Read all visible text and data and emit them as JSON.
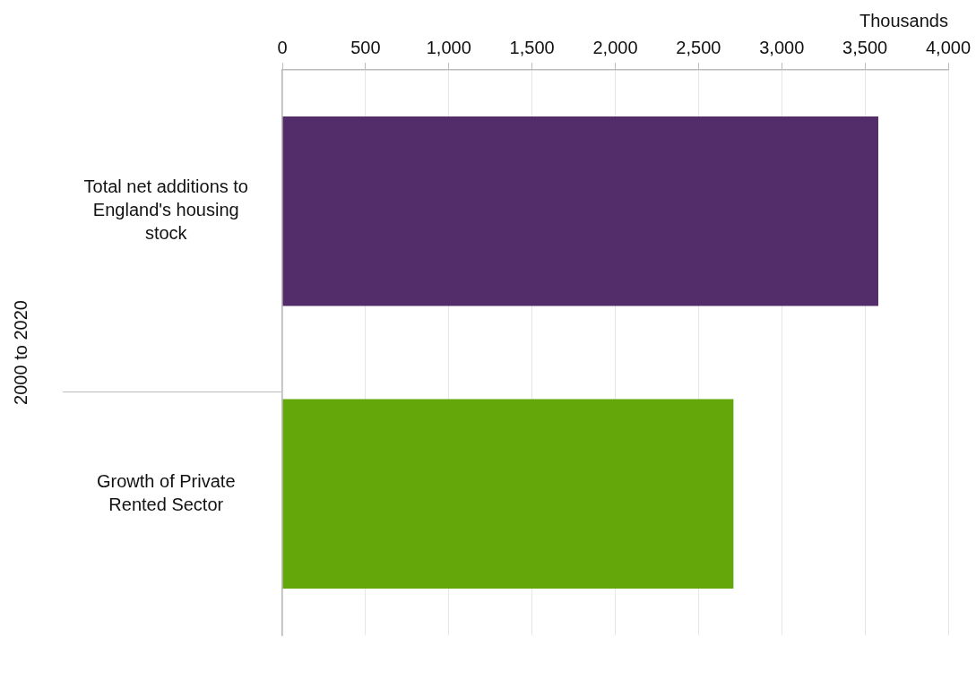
{
  "chart_data": {
    "type": "bar",
    "orientation": "horizontal",
    "xlabel": "Thousands",
    "ylabel": "2000 to 2020",
    "categories": [
      "Total net additions to England's housing stock",
      "Growth of Private Rented Sector"
    ],
    "series": [
      {
        "values": [
          3580,
          2710
        ],
        "colors": [
          "#522d6a",
          "#63a70b"
        ]
      }
    ],
    "xlim": [
      0,
      4000
    ],
    "xticks": [
      0,
      500,
      {
        "value": 1000,
        "label": "1,000"
      },
      {
        "value": 1500,
        "label": "1,500"
      },
      {
        "value": 2000,
        "label": "2,000"
      },
      {
        "value": 2500,
        "label": "2,500"
      },
      {
        "value": 3000,
        "label": "3,000"
      },
      {
        "value": 3500,
        "label": "3,500"
      },
      {
        "value": 4000,
        "label": "4,000"
      }
    ],
    "grid": "x",
    "legend": false
  }
}
